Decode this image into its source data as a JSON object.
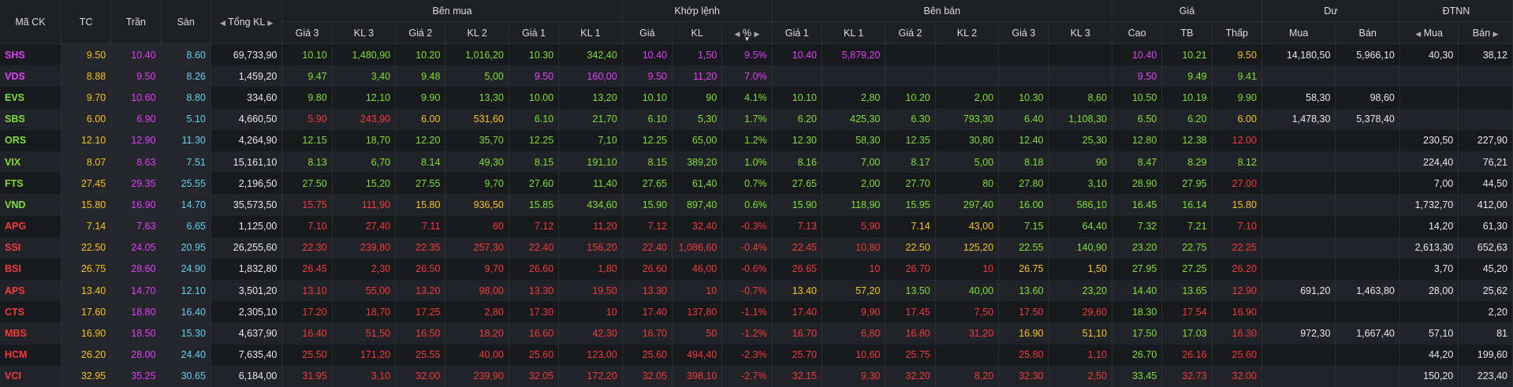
{
  "colors": {
    "ceiling": "#e040fb",
    "floor": "#5fd3f3",
    "reference": "#f5c518",
    "up": "#7de030",
    "down": "#f23b3b",
    "neutral": "#e8e8e8"
  },
  "header": {
    "ma_ck": "Mã CK",
    "tc": "TC",
    "tran": "Trần",
    "san": "Sàn",
    "tong_kl": "Tổng KL",
    "ben_mua": "Bên mua",
    "khop_lenh": "Khớp lệnh",
    "ben_ban": "Bên bán",
    "gia": "Giá",
    "du": "Dư",
    "dtnn": "ĐTNN",
    "buy_cols": [
      "Giá 3",
      "KL 3",
      "Giá 2",
      "KL 2",
      "Giá 1",
      "KL 1"
    ],
    "match_cols": [
      "Giá",
      "KL",
      "%"
    ],
    "sell_cols": [
      "Giá 1",
      "KL 1",
      "Giá 2",
      "KL 2",
      "Giá 3",
      "KL 3"
    ],
    "price_cols": [
      "Cao",
      "TB",
      "Thấp"
    ],
    "du_cols": [
      "Mua",
      "Bán"
    ],
    "dtnn_cols": [
      "Mua",
      "Bán"
    ]
  },
  "rows": [
    {
      "sym": "SHS",
      "sc": "ce",
      "tc": "9.50",
      "tran": "10.40",
      "san": "8.60",
      "tkl": "69,733,90",
      "b3": [
        "10.10",
        "1,480,90",
        "up"
      ],
      "b2": [
        "10.20",
        "1,016,20",
        "up"
      ],
      "b1": [
        "10.30",
        "342,40",
        "up"
      ],
      "m": [
        "10.40",
        "1,50",
        "9.5%",
        "ce"
      ],
      "s1": [
        "10.40",
        "5,879,20",
        "ce"
      ],
      "s2": [
        "",
        "",
        ""
      ],
      "s3": [
        "",
        "",
        ""
      ],
      "cao": [
        "10.40",
        "ce"
      ],
      "tb": [
        "10.21",
        "up"
      ],
      "thap": [
        "9.50",
        "re"
      ],
      "du_mua": "14,180,50",
      "du_ban": "5,966,10",
      "nn_mua": "40,30",
      "nn_ban": "38,12"
    },
    {
      "sym": "VDS",
      "sc": "ce",
      "tc": "8.88",
      "tran": "9.50",
      "san": "8.26",
      "tkl": "1,459,20",
      "b3": [
        "9.47",
        "3,40",
        "up"
      ],
      "b2": [
        "9.48",
        "5,00",
        "up"
      ],
      "b1": [
        "9.50",
        "160,00",
        "ce"
      ],
      "m": [
        "9.50",
        "11,20",
        "7.0%",
        "ce"
      ],
      "s1": [
        "",
        "",
        ""
      ],
      "s2": [
        "",
        "",
        ""
      ],
      "s3": [
        "",
        "",
        ""
      ],
      "cao": [
        "9.50",
        "ce"
      ],
      "tb": [
        "9.49",
        "up"
      ],
      "thap": [
        "9.41",
        "up"
      ],
      "du_mua": "",
      "du_ban": "",
      "nn_mua": "",
      "nn_ban": ""
    },
    {
      "sym": "EVS",
      "sc": "up",
      "tc": "9.70",
      "tran": "10.60",
      "san": "8.80",
      "tkl": "334,60",
      "b3": [
        "9.80",
        "12,10",
        "up"
      ],
      "b2": [
        "9.90",
        "13,30",
        "up"
      ],
      "b1": [
        "10.00",
        "13,20",
        "up"
      ],
      "m": [
        "10.10",
        "90",
        "4.1%",
        "up"
      ],
      "s1": [
        "10.10",
        "2,80",
        "up"
      ],
      "s2": [
        "10.20",
        "2,00",
        "up"
      ],
      "s3": [
        "10.30",
        "8,60",
        "up"
      ],
      "cao": [
        "10.50",
        "up"
      ],
      "tb": [
        "10.19",
        "up"
      ],
      "thap": [
        "9.90",
        "up"
      ],
      "du_mua": "58,30",
      "du_ban": "98,60",
      "nn_mua": "",
      "nn_ban": ""
    },
    {
      "sym": "SBS",
      "sc": "up",
      "tc": "6.00",
      "tran": "6.90",
      "san": "5.10",
      "tkl": "4,660,50",
      "b3": [
        "5.90",
        "243,90",
        "dn"
      ],
      "b2": [
        "6.00",
        "531,60",
        "re"
      ],
      "b1": [
        "6.10",
        "21,70",
        "up"
      ],
      "m": [
        "6.10",
        "5,30",
        "1.7%",
        "up"
      ],
      "s1": [
        "6.20",
        "425,30",
        "up"
      ],
      "s2": [
        "6.30",
        "793,30",
        "up"
      ],
      "s3": [
        "6.40",
        "1,108,30",
        "up"
      ],
      "cao": [
        "6.50",
        "up"
      ],
      "tb": [
        "6.20",
        "up"
      ],
      "thap": [
        "6.00",
        "re"
      ],
      "du_mua": "1,478,30",
      "du_ban": "5,378,40",
      "nn_mua": "",
      "nn_ban": ""
    },
    {
      "sym": "ORS",
      "sc": "up",
      "tc": "12.10",
      "tran": "12.90",
      "san": "11.30",
      "tkl": "4,264,90",
      "b3": [
        "12.15",
        "18,70",
        "up"
      ],
      "b2": [
        "12.20",
        "35,70",
        "up"
      ],
      "b1": [
        "12.25",
        "7,10",
        "up"
      ],
      "m": [
        "12.25",
        "65,00",
        "1.2%",
        "up"
      ],
      "s1": [
        "12.30",
        "58,30",
        "up"
      ],
      "s2": [
        "12.35",
        "30,80",
        "up"
      ],
      "s3": [
        "12.40",
        "25,30",
        "up"
      ],
      "cao": [
        "12.80",
        "up"
      ],
      "tb": [
        "12.38",
        "up"
      ],
      "thap": [
        "12.00",
        "dn"
      ],
      "du_mua": "",
      "du_ban": "",
      "nn_mua": "230,50",
      "nn_ban": "227,90"
    },
    {
      "sym": "VIX",
      "sc": "up",
      "tc": "8.07",
      "tran": "8.63",
      "san": "7.51",
      "tkl": "15,161,10",
      "b3": [
        "8.13",
        "6,70",
        "up"
      ],
      "b2": [
        "8.14",
        "49,30",
        "up"
      ],
      "b1": [
        "8.15",
        "191,10",
        "up"
      ],
      "m": [
        "8.15",
        "389,20",
        "1.0%",
        "up"
      ],
      "s1": [
        "8.16",
        "7,00",
        "up"
      ],
      "s2": [
        "8.17",
        "5,00",
        "up"
      ],
      "s3": [
        "8.18",
        "90",
        "up"
      ],
      "cao": [
        "8.47",
        "up"
      ],
      "tb": [
        "8.29",
        "up"
      ],
      "thap": [
        "8.12",
        "up"
      ],
      "du_mua": "",
      "du_ban": "",
      "nn_mua": "224,40",
      "nn_ban": "76,21"
    },
    {
      "sym": "FTS",
      "sc": "up",
      "tc": "27.45",
      "tran": "29.35",
      "san": "25.55",
      "tkl": "2,196,50",
      "b3": [
        "27.50",
        "15,20",
        "up"
      ],
      "b2": [
        "27.55",
        "9,70",
        "up"
      ],
      "b1": [
        "27.60",
        "11,40",
        "up"
      ],
      "m": [
        "27.65",
        "61,40",
        "0.7%",
        "up"
      ],
      "s1": [
        "27.65",
        "2,00",
        "up"
      ],
      "s2": [
        "27.70",
        "80",
        "up"
      ],
      "s3": [
        "27.80",
        "3,10",
        "up"
      ],
      "cao": [
        "28.90",
        "up"
      ],
      "tb": [
        "27.95",
        "up"
      ],
      "thap": [
        "27.00",
        "dn"
      ],
      "du_mua": "",
      "du_ban": "",
      "nn_mua": "7,00",
      "nn_ban": "44,50"
    },
    {
      "sym": "VND",
      "sc": "up",
      "tc": "15.80",
      "tran": "16.90",
      "san": "14.70",
      "tkl": "35,573,50",
      "b3": [
        "15.75",
        "111,90",
        "dn"
      ],
      "b2": [
        "15.80",
        "936,50",
        "re"
      ],
      "b1": [
        "15.85",
        "434,60",
        "up"
      ],
      "m": [
        "15.90",
        "897,40",
        "0.6%",
        "up"
      ],
      "s1": [
        "15.90",
        "118,90",
        "up"
      ],
      "s2": [
        "15.95",
        "297,40",
        "up"
      ],
      "s3": [
        "16.00",
        "586,10",
        "up"
      ],
      "cao": [
        "16.45",
        "up"
      ],
      "tb": [
        "16.14",
        "up"
      ],
      "thap": [
        "15.80",
        "re"
      ],
      "du_mua": "",
      "du_ban": "",
      "nn_mua": "1,732,70",
      "nn_ban": "412,00"
    },
    {
      "sym": "APG",
      "sc": "dn",
      "tc": "7.14",
      "tran": "7.63",
      "san": "6.65",
      "tkl": "1,125,00",
      "b3": [
        "7.10",
        "27,40",
        "dn"
      ],
      "b2": [
        "7.11",
        "60",
        "dn"
      ],
      "b1": [
        "7.12",
        "11,20",
        "dn"
      ],
      "m": [
        "7.12",
        "32,40",
        "-0.3%",
        "dn"
      ],
      "s1": [
        "7.13",
        "5,90",
        "dn"
      ],
      "s2": [
        "7.14",
        "43,00",
        "re"
      ],
      "s3": [
        "7.15",
        "64,40",
        "up"
      ],
      "cao": [
        "7.32",
        "up"
      ],
      "tb": [
        "7.21",
        "up"
      ],
      "thap": [
        "7.10",
        "dn"
      ],
      "du_mua": "",
      "du_ban": "",
      "nn_mua": "14,20",
      "nn_ban": "61,30"
    },
    {
      "sym": "SSI",
      "sc": "dn",
      "tc": "22.50",
      "tran": "24.05",
      "san": "20.95",
      "tkl": "26,255,60",
      "b3": [
        "22.30",
        "239,80",
        "dn"
      ],
      "b2": [
        "22.35",
        "257,30",
        "dn"
      ],
      "b1": [
        "22.40",
        "156,20",
        "dn"
      ],
      "m": [
        "22.40",
        "1,086,60",
        "-0.4%",
        "dn"
      ],
      "s1": [
        "22.45",
        "10,80",
        "dn"
      ],
      "s2": [
        "22.50",
        "125,20",
        "re"
      ],
      "s3": [
        "22.55",
        "140,90",
        "up"
      ],
      "cao": [
        "23.20",
        "up"
      ],
      "tb": [
        "22.75",
        "up"
      ],
      "thap": [
        "22.25",
        "dn"
      ],
      "du_mua": "",
      "du_ban": "",
      "nn_mua": "2,613,30",
      "nn_ban": "652,63"
    },
    {
      "sym": "BSI",
      "sc": "dn",
      "tc": "26.75",
      "tran": "28.60",
      "san": "24.90",
      "tkl": "1,832,80",
      "b3": [
        "26.45",
        "2,30",
        "dn"
      ],
      "b2": [
        "26.50",
        "9,70",
        "dn"
      ],
      "b1": [
        "26.60",
        "1,80",
        "dn"
      ],
      "m": [
        "26.60",
        "46,00",
        "-0.6%",
        "dn"
      ],
      "s1": [
        "26.65",
        "10",
        "dn"
      ],
      "s2": [
        "26.70",
        "10",
        "dn"
      ],
      "s3": [
        "26.75",
        "1,50",
        "re"
      ],
      "cao": [
        "27.95",
        "up"
      ],
      "tb": [
        "27.25",
        "up"
      ],
      "thap": [
        "26.20",
        "dn"
      ],
      "du_mua": "",
      "du_ban": "",
      "nn_mua": "3,70",
      "nn_ban": "45,20"
    },
    {
      "sym": "APS",
      "sc": "dn",
      "tc": "13.40",
      "tran": "14.70",
      "san": "12.10",
      "tkl": "3,501,20",
      "b3": [
        "13.10",
        "55,00",
        "dn"
      ],
      "b2": [
        "13.20",
        "98,00",
        "dn"
      ],
      "b1": [
        "13.30",
        "19,50",
        "dn"
      ],
      "m": [
        "13.30",
        "10",
        "-0.7%",
        "dn"
      ],
      "s1": [
        "13.40",
        "57,20",
        "re"
      ],
      "s2": [
        "13.50",
        "40,00",
        "up"
      ],
      "s3": [
        "13.60",
        "23,20",
        "up"
      ],
      "cao": [
        "14.40",
        "up"
      ],
      "tb": [
        "13.65",
        "up"
      ],
      "thap": [
        "12.90",
        "dn"
      ],
      "du_mua": "691,20",
      "du_ban": "1,463,80",
      "nn_mua": "28,00",
      "nn_ban": "25,62"
    },
    {
      "sym": "CTS",
      "sc": "dn",
      "tc": "17.60",
      "tran": "18.80",
      "san": "16.40",
      "tkl": "2,305,10",
      "b3": [
        "17.20",
        "18,70",
        "dn"
      ],
      "b2": [
        "17.25",
        "2,80",
        "dn"
      ],
      "b1": [
        "17.30",
        "10",
        "dn"
      ],
      "m": [
        "17.40",
        "137,80",
        "-1.1%",
        "dn"
      ],
      "s1": [
        "17.40",
        "9,90",
        "dn"
      ],
      "s2": [
        "17.45",
        "7,50",
        "dn"
      ],
      "s3": [
        "17.50",
        "29,60",
        "dn"
      ],
      "cao": [
        "18.30",
        "up"
      ],
      "tb": [
        "17.54",
        "dn"
      ],
      "thap": [
        "16.90",
        "dn"
      ],
      "du_mua": "",
      "du_ban": "",
      "nn_mua": "",
      "nn_ban": "2,20"
    },
    {
      "sym": "MBS",
      "sc": "dn",
      "tc": "16.90",
      "tran": "18.50",
      "san": "15.30",
      "tkl": "4,637,90",
      "b3": [
        "16.40",
        "51,50",
        "dn"
      ],
      "b2": [
        "16.50",
        "18,20",
        "dn"
      ],
      "b1": [
        "16.60",
        "42,30",
        "dn"
      ],
      "m": [
        "16.70",
        "50",
        "-1.2%",
        "dn"
      ],
      "s1": [
        "16.70",
        "6,80",
        "dn"
      ],
      "s2": [
        "16.80",
        "31,20",
        "dn"
      ],
      "s3": [
        "16.90",
        "51,10",
        "re"
      ],
      "cao": [
        "17.50",
        "up"
      ],
      "tb": [
        "17.03",
        "up"
      ],
      "thap": [
        "16.30",
        "dn"
      ],
      "du_mua": "972,30",
      "du_ban": "1,667,40",
      "nn_mua": "57,10",
      "nn_ban": "81"
    },
    {
      "sym": "HCM",
      "sc": "dn",
      "tc": "26.20",
      "tran": "28.00",
      "san": "24.40",
      "tkl": "7,635,40",
      "b3": [
        "25.50",
        "171,20",
        "dn"
      ],
      "b2": [
        "25.55",
        "40,00",
        "dn"
      ],
      "b1": [
        "25.60",
        "123,00",
        "dn"
      ],
      "m": [
        "25.60",
        "494,40",
        "-2.3%",
        "dn"
      ],
      "s1": [
        "25.70",
        "10,60",
        "dn"
      ],
      "s2": [
        "25.75",
        "",
        "dn"
      ],
      "s3": [
        "25.80",
        "1,10",
        "dn"
      ],
      "cao": [
        "26.70",
        "up"
      ],
      "tb": [
        "26.16",
        "dn"
      ],
      "thap": [
        "25.60",
        "dn"
      ],
      "du_mua": "",
      "du_ban": "",
      "nn_mua": "44,20",
      "nn_ban": "199,60"
    },
    {
      "sym": "VCI",
      "sc": "dn",
      "tc": "32.95",
      "tran": "35.25",
      "san": "30.65",
      "tkl": "6,184,00",
      "b3": [
        "31.95",
        "3,10",
        "dn"
      ],
      "b2": [
        "32.00",
        "239,90",
        "dn"
      ],
      "b1": [
        "32.05",
        "172,20",
        "dn"
      ],
      "m": [
        "32.05",
        "398,10",
        "-2.7%",
        "dn"
      ],
      "s1": [
        "32.15",
        "9,30",
        "dn"
      ],
      "s2": [
        "32.20",
        "8,20",
        "dn"
      ],
      "s3": [
        "32.30",
        "2,50",
        "dn"
      ],
      "cao": [
        "33.45",
        "up"
      ],
      "tb": [
        "32.73",
        "dn"
      ],
      "thap": [
        "32.00",
        "dn"
      ],
      "du_mua": "",
      "du_ban": "",
      "nn_mua": "150,20",
      "nn_ban": "223,40"
    }
  ]
}
